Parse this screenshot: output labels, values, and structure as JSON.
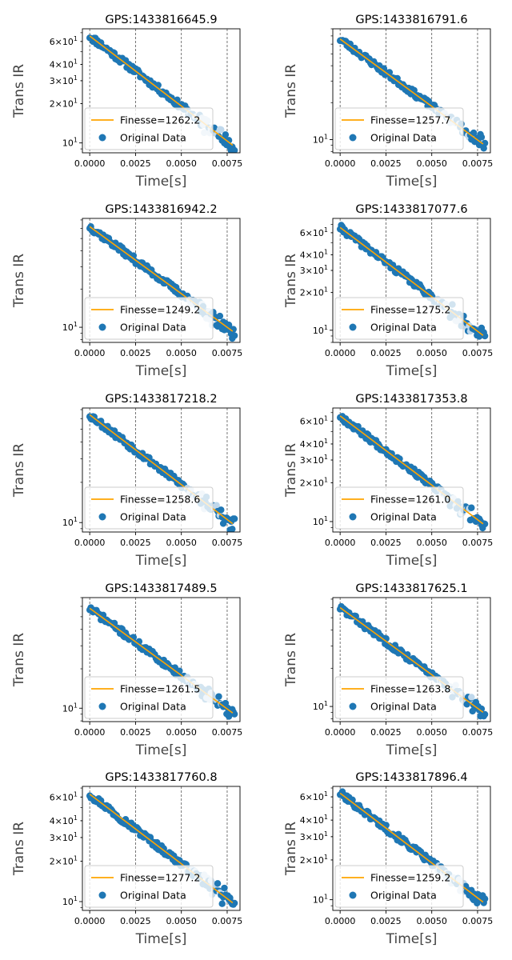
{
  "figure": {
    "xlabel": "Time[s]",
    "ylabel": "Trans IR",
    "legend_fit_prefix": "Finesse=",
    "legend_data_label": "Original Data",
    "colors": {
      "data": "#1f77b4",
      "fit": "#ffa500",
      "grid": "#555555",
      "axis": "#000000",
      "legend_edge": "#cccccc"
    }
  },
  "chart_data": [
    {
      "type": "scatter",
      "title": "GPS:1433816645.9",
      "finesse": "1262.2",
      "xlabel": "Time[s]",
      "ylabel": "Trans IR",
      "xlim": [
        -0.0004,
        0.0082
      ],
      "ylim": [
        8.4,
        75
      ],
      "yscale": "log",
      "xticks": [
        "0.0000",
        "0.0025",
        "0.0050",
        "0.0075"
      ],
      "yticks": [
        {
          "value": 10,
          "label": "10^1"
        },
        {
          "value": 20,
          "label": "2×10^1"
        },
        {
          "value": 30,
          "label": "3×10^1"
        },
        {
          "value": 40,
          "label": "4×10^1"
        },
        {
          "value": 60,
          "label": "6×10^1"
        }
      ],
      "fit": {
        "x": [
          0,
          0.0078
        ],
        "y": [
          66,
          9.6
        ]
      },
      "grid": "vertical dashed",
      "legend": "lower-left",
      "tau": 0.00404,
      "y0": 66,
      "seed": 11
    },
    {
      "type": "scatter",
      "title": "GPS:1433816791.6",
      "finesse": "1257.7",
      "xlabel": "Time[s]",
      "ylabel": "Trans IR",
      "xlim": [
        -0.0004,
        0.0082
      ],
      "ylim": [
        7.8,
        80
      ],
      "yscale": "log",
      "xticks": [
        "0.0000",
        "0.0025",
        "0.0050",
        "0.0075"
      ],
      "yticks": [
        {
          "value": 10,
          "label": "10^1"
        }
      ],
      "fit": {
        "x": [
          0,
          0.0078
        ],
        "y": [
          66,
          9.2
        ]
      },
      "grid": "vertical dashed",
      "legend": "lower-left",
      "tau": 0.00396,
      "y0": 66,
      "seed": 23
    },
    {
      "type": "scatter",
      "title": "GPS:1433816942.2",
      "finesse": "1249.2",
      "xlabel": "Time[s]",
      "ylabel": "Trans IR",
      "xlim": [
        -0.0004,
        0.0082
      ],
      "ylim": [
        7.6,
        72
      ],
      "yscale": "log",
      "xticks": [
        "0.0000",
        "0.0025",
        "0.0050",
        "0.0075"
      ],
      "yticks": [
        {
          "value": 10,
          "label": "10^1"
        }
      ],
      "fit": {
        "x": [
          0,
          0.0078
        ],
        "y": [
          62,
          9.3
        ]
      },
      "grid": "vertical dashed",
      "legend": "lower-left",
      "tau": 0.0041,
      "y0": 62,
      "seed": 37
    },
    {
      "type": "scatter",
      "title": "GPS:1433817077.6",
      "finesse": "1275.2",
      "xlabel": "Time[s]",
      "ylabel": "Trans IR",
      "xlim": [
        -0.0004,
        0.0082
      ],
      "ylim": [
        8.0,
        78
      ],
      "yscale": "log",
      "xticks": [
        "0.0000",
        "0.0025",
        "0.0050",
        "0.0075"
      ],
      "yticks": [
        {
          "value": 10,
          "label": "10^1"
        },
        {
          "value": 20,
          "label": "2×10^1"
        },
        {
          "value": 30,
          "label": "3×10^1"
        },
        {
          "value": 40,
          "label": "4×10^1"
        },
        {
          "value": 60,
          "label": "6×10^1"
        }
      ],
      "fit": {
        "x": [
          0,
          0.0078
        ],
        "y": [
          66,
          9.1
        ]
      },
      "grid": "vertical dashed",
      "legend": "lower-left",
      "tau": 0.00394,
      "y0": 66,
      "seed": 41
    },
    {
      "type": "scatter",
      "title": "GPS:1433817218.2",
      "finesse": "1258.6",
      "xlabel": "Time[s]",
      "ylabel": "Trans IR",
      "xlim": [
        -0.0004,
        0.0082
      ],
      "ylim": [
        8.5,
        72
      ],
      "yscale": "log",
      "xticks": [
        "0.0000",
        "0.0025",
        "0.0050",
        "0.0075"
      ],
      "yticks": [
        {
          "value": 10,
          "label": "10^1"
        }
      ],
      "fit": {
        "x": [
          0,
          0.0078
        ],
        "y": [
          64,
          9.8
        ]
      },
      "grid": "vertical dashed",
      "legend": "lower-left",
      "tau": 0.00416,
      "y0": 64,
      "seed": 53
    },
    {
      "type": "scatter",
      "title": "GPS:1433817353.8",
      "finesse": "1261.0",
      "xlabel": "Time[s]",
      "ylabel": "Trans IR",
      "xlim": [
        -0.0004,
        0.0082
      ],
      "ylim": [
        8.3,
        76
      ],
      "yscale": "log",
      "xticks": [
        "0.0000",
        "0.0025",
        "0.0050",
        "0.0075"
      ],
      "yticks": [
        {
          "value": 10,
          "label": "10^1"
        },
        {
          "value": 20,
          "label": "2×10^1"
        },
        {
          "value": 30,
          "label": "3×10^1"
        },
        {
          "value": 40,
          "label": "4×10^1"
        },
        {
          "value": 60,
          "label": "6×10^1"
        }
      ],
      "fit": {
        "x": [
          0,
          0.0078
        ],
        "y": [
          66,
          9.6
        ]
      },
      "grid": "vertical dashed",
      "legend": "lower-left",
      "tau": 0.00404,
      "y0": 66,
      "seed": 67
    },
    {
      "type": "scatter",
      "title": "GPS:1433817489.5",
      "finesse": "1261.5",
      "xlabel": "Time[s]",
      "ylabel": "Trans IR",
      "xlim": [
        -0.0004,
        0.0082
      ],
      "ylim": [
        7.9,
        70
      ],
      "yscale": "log",
      "xticks": [
        "0.0000",
        "0.0025",
        "0.0050",
        "0.0075"
      ],
      "yticks": [
        {
          "value": 10,
          "label": "10^1"
        }
      ],
      "fit": {
        "x": [
          0,
          0.0078
        ],
        "y": [
          58,
          9.2
        ]
      },
      "grid": "vertical dashed",
      "legend": "lower-left",
      "tau": 0.00423,
      "y0": 58,
      "seed": 71
    },
    {
      "type": "scatter",
      "title": "GPS:1433817625.1",
      "finesse": "1263.8",
      "xlabel": "Time[s]",
      "ylabel": "Trans IR",
      "xlim": [
        -0.0004,
        0.0082
      ],
      "ylim": [
        7.6,
        72
      ],
      "yscale": "log",
      "xticks": [
        "0.0000",
        "0.0025",
        "0.0050",
        "0.0075"
      ],
      "yticks": [
        {
          "value": 10,
          "label": "10^1"
        }
      ],
      "fit": {
        "x": [
          0,
          0.0078
        ],
        "y": [
          60,
          9.0
        ]
      },
      "grid": "vertical dashed",
      "legend": "lower-left",
      "tau": 0.00411,
      "y0": 60,
      "seed": 83
    },
    {
      "type": "scatter",
      "title": "GPS:1433817760.8",
      "finesse": "1277.2",
      "xlabel": "Time[s]",
      "ylabel": "Trans IR",
      "xlim": [
        -0.0004,
        0.0082
      ],
      "ylim": [
        8.6,
        72
      ],
      "yscale": "log",
      "xticks": [
        "0.0000",
        "0.0025",
        "0.0050",
        "0.0075"
      ],
      "yticks": [
        {
          "value": 10,
          "label": "10^1"
        },
        {
          "value": 20,
          "label": "2×10^1"
        },
        {
          "value": 30,
          "label": "3×10^1"
        },
        {
          "value": 40,
          "label": "4×10^1"
        },
        {
          "value": 60,
          "label": "6×10^1"
        }
      ],
      "fit": {
        "x": [
          0,
          0.0078
        ],
        "y": [
          63,
          9.8
        ]
      },
      "grid": "vertical dashed",
      "legend": "lower-left",
      "tau": 0.00419,
      "y0": 63,
      "seed": 97
    },
    {
      "type": "scatter",
      "title": "GPS:1433817896.4",
      "finesse": "1259.2",
      "xlabel": "Time[s]",
      "ylabel": "Trans IR",
      "xlim": [
        -0.0004,
        0.0082
      ],
      "ylim": [
        8.3,
        72
      ],
      "yscale": "log",
      "xticks": [
        "0.0000",
        "0.0025",
        "0.0050",
        "0.0075"
      ],
      "yticks": [
        {
          "value": 10,
          "label": "10^1"
        },
        {
          "value": 20,
          "label": "2×10^1"
        },
        {
          "value": 30,
          "label": "3×10^1"
        },
        {
          "value": 40,
          "label": "4×10^1"
        },
        {
          "value": 60,
          "label": "6×10^1"
        }
      ],
      "fit": {
        "x": [
          0,
          0.0078
        ],
        "y": [
          64,
          9.6
        ]
      },
      "grid": "vertical dashed",
      "legend": "lower-left",
      "tau": 0.00412,
      "y0": 64,
      "seed": 101
    }
  ]
}
